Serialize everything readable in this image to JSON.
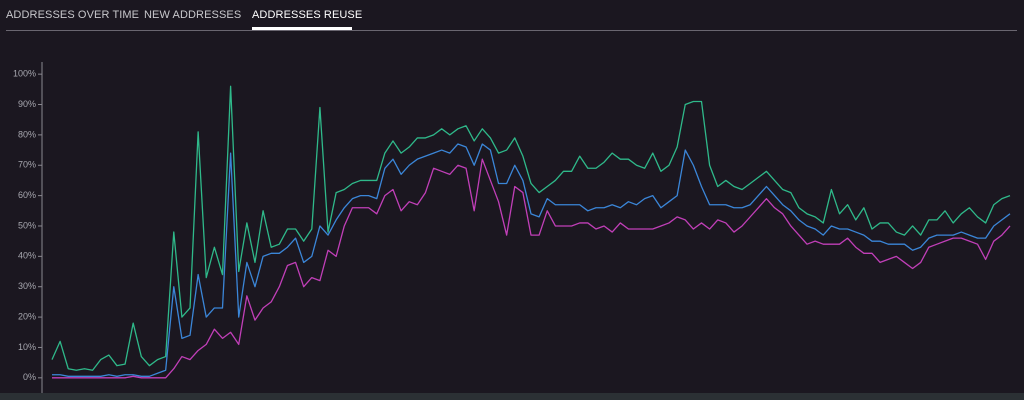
{
  "tabs": [
    "ADDRESSES OVER TIME",
    "NEW ADDRESSES",
    "ADDRESSES REUSE"
  ],
  "chart_data": {
    "type": "line",
    "ylim": [
      -5,
      104
    ],
    "yticks": [
      {
        "value": 0,
        "label": "0%"
      },
      {
        "value": 10,
        "label": "10%"
      },
      {
        "value": 20,
        "label": "20%"
      },
      {
        "value": 30,
        "label": "30%"
      },
      {
        "value": 40,
        "label": "40%"
      },
      {
        "value": 50,
        "label": "50%"
      },
      {
        "value": 60,
        "label": "60%"
      },
      {
        "value": 70,
        "label": "70%"
      },
      {
        "value": 80,
        "label": "80%"
      },
      {
        "value": 90,
        "label": "90%"
      },
      {
        "value": 100,
        "label": "100%"
      }
    ],
    "series": [
      {
        "color": "#2fb98a",
        "values": [
          6,
          12,
          3,
          2.5,
          3,
          2.5,
          6,
          7.5,
          4,
          4.5,
          18,
          7,
          4,
          6,
          7,
          48,
          20,
          23,
          81,
          33,
          43,
          34,
          96,
          35,
          51,
          38,
          55,
          43,
          44,
          49,
          49,
          45,
          49,
          89,
          48,
          61,
          62,
          64,
          65,
          65,
          65,
          74,
          78,
          74,
          76,
          79,
          79,
          80,
          82,
          80,
          82,
          83,
          78,
          82,
          79,
          74,
          75,
          79,
          73,
          64,
          61,
          63,
          65,
          68,
          68,
          73,
          69,
          69,
          71,
          74,
          72,
          72,
          70,
          69,
          74,
          68,
          70,
          76,
          90,
          91,
          91,
          70,
          63,
          65,
          63,
          62,
          64,
          66,
          68,
          65,
          62,
          61,
          56,
          54,
          53,
          51,
          62,
          54,
          57,
          52,
          56,
          49,
          51,
          51,
          48,
          47,
          50,
          47,
          52,
          52,
          55,
          51,
          54,
          56,
          53,
          51,
          57,
          59,
          60
        ]
      },
      {
        "color": "#3b86d8",
        "values": [
          1,
          1,
          0.5,
          0.5,
          0.5,
          0.5,
          0.5,
          1,
          0.5,
          1,
          1,
          0.5,
          0.5,
          1.5,
          2.5,
          30,
          13,
          14,
          34,
          20,
          23,
          23,
          74,
          20,
          38,
          30,
          40,
          41,
          41,
          43,
          46,
          38,
          40,
          50,
          47,
          52,
          56,
          59,
          60,
          60,
          59,
          69,
          72,
          67,
          70,
          72,
          73,
          74,
          75,
          74,
          77,
          76,
          70,
          77,
          75,
          64,
          64,
          70,
          65,
          54,
          53,
          59,
          57,
          57,
          57,
          57,
          55,
          56,
          56,
          57,
          56,
          58,
          57,
          59,
          60,
          56,
          58,
          60,
          75,
          70,
          63,
          57,
          57,
          57,
          56,
          56,
          57,
          60,
          63,
          60,
          57,
          55,
          52,
          50,
          49,
          47,
          50,
          49,
          49,
          48,
          47,
          45,
          45,
          44,
          44,
          44,
          42,
          43,
          46,
          47,
          47,
          47,
          48,
          47,
          46,
          46,
          50,
          52,
          54
        ]
      },
      {
        "color": "#c13fb8",
        "values": [
          0,
          0,
          0,
          0,
          0,
          0,
          0,
          0,
          0,
          0,
          0.5,
          0,
          0,
          0,
          0,
          3,
          7,
          6,
          9,
          11,
          16,
          13,
          15,
          11,
          27,
          19,
          23,
          25,
          30,
          37,
          38,
          30,
          33,
          32,
          42,
          40,
          50,
          56,
          56,
          56,
          54,
          60,
          62,
          55,
          58,
          57,
          61,
          69,
          68,
          67,
          70,
          69,
          55,
          72,
          65,
          58,
          47,
          63,
          61,
          47,
          47,
          55,
          50,
          50,
          50,
          51,
          51,
          49,
          50,
          48,
          51,
          49,
          49,
          49,
          49,
          50,
          51,
          53,
          52,
          49,
          51,
          49,
          52,
          51,
          48,
          50,
          53,
          56,
          59,
          56,
          54,
          50,
          47,
          44,
          45,
          44,
          44,
          44,
          46,
          43,
          41,
          41,
          38,
          39,
          40,
          38,
          36,
          38,
          43,
          44,
          45,
          46,
          46,
          45,
          44,
          39,
          45,
          47,
          50
        ]
      }
    ]
  }
}
